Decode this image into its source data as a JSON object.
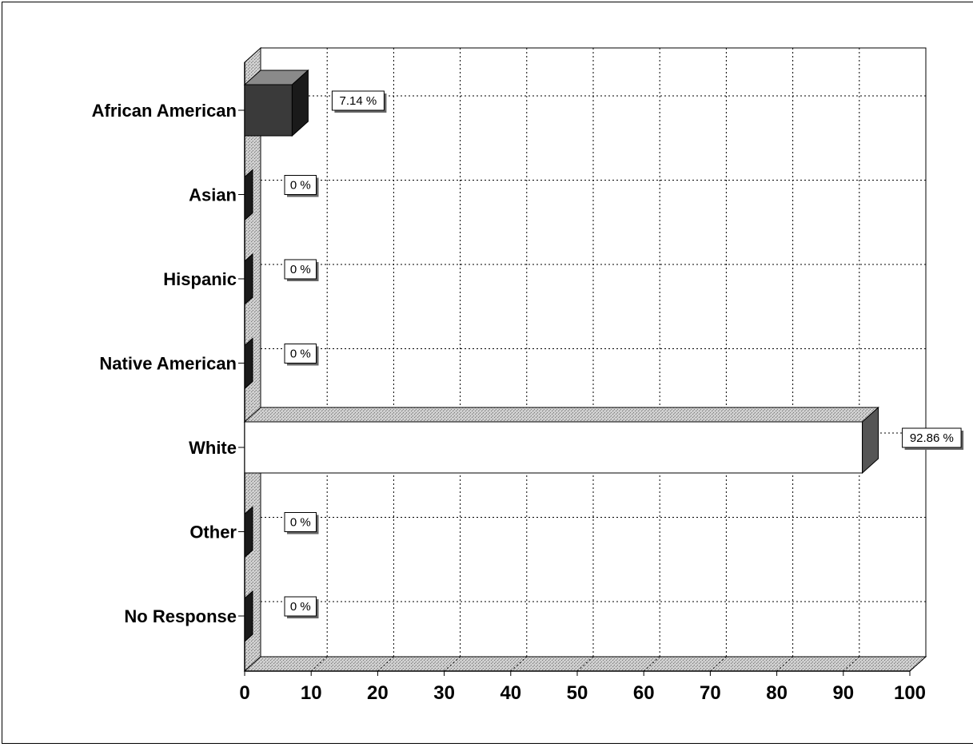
{
  "chart_data": {
    "type": "bar",
    "orientation": "horizontal",
    "categories": [
      "African American",
      "Asian",
      "Hispanic",
      "Native American",
      "White",
      "Other",
      "No Response"
    ],
    "values": [
      7.14,
      0,
      0,
      0,
      92.86,
      0,
      0
    ],
    "data_labels": [
      "7.14 %",
      "0 %",
      "0 %",
      "0 %",
      "92.86 %",
      "0 %",
      "0 %"
    ],
    "xlim": [
      0,
      100
    ],
    "x_ticks": [
      "0",
      "10",
      "20",
      "30",
      "40",
      "50",
      "60",
      "70",
      "80",
      "90",
      "100"
    ],
    "grid": true,
    "three_d": true,
    "colors": {
      "dark_bar": "#3a3a3a",
      "dark_bar_side": "#1a1a1a",
      "dark_bar_top": "#8a8a8a",
      "white_bar": "#ffffff",
      "white_bar_top": "#a8a8a8",
      "white_bar_side": "#555555",
      "floor": "#d0d0d0"
    }
  }
}
